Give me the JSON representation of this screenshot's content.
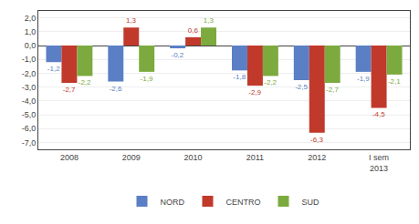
{
  "chart_data": {
    "type": "bar",
    "categories": [
      "2008",
      "2009",
      "2010",
      "2011",
      "2012",
      "I sem\n2013"
    ],
    "series": [
      {
        "name": "NORD",
        "color": "#5b7fc4",
        "values": [
          -1.2,
          -2.6,
          -0.2,
          -1.8,
          -2.5,
          -1.9
        ],
        "value_labels": [
          "-1,2",
          "-2,6",
          "-0,2",
          "-1,8",
          "-2,5",
          "-1,9"
        ]
      },
      {
        "name": "CENTRO",
        "color": "#c0392b",
        "values": [
          -2.7,
          1.3,
          0.6,
          -2.9,
          -6.3,
          -4.5
        ],
        "value_labels": [
          "-2,7",
          "1,3",
          "0,6",
          "-2,9",
          "-6,3",
          "-4,5"
        ]
      },
      {
        "name": "SUD",
        "color": "#7caa3e",
        "values": [
          -2.2,
          -1.9,
          1.3,
          -2.2,
          -2.7,
          -2.1
        ],
        "value_labels": [
          "-2,2",
          "-1,9",
          "1,3",
          "-2,2",
          "-2,7",
          "-2,1"
        ]
      }
    ],
    "ylim": [
      -7.5,
      2.5
    ],
    "yticks": [
      {
        "value": 2.0,
        "label": "2,0"
      },
      {
        "value": 1.0,
        "label": "1,0"
      },
      {
        "value": 0.0,
        "label": "0,0"
      },
      {
        "value": -1.0,
        "label": "-1,0"
      },
      {
        "value": -2.0,
        "label": "-2,0"
      },
      {
        "value": -3.0,
        "label": "-3,0"
      },
      {
        "value": -4.0,
        "label": "-4,0"
      },
      {
        "value": -5.0,
        "label": "-5,0"
      },
      {
        "value": -6.0,
        "label": "-6,0"
      },
      {
        "value": -7.0,
        "label": "-7,0"
      }
    ],
    "grid": true,
    "legend": "bottom",
    "data_labels": true
  }
}
